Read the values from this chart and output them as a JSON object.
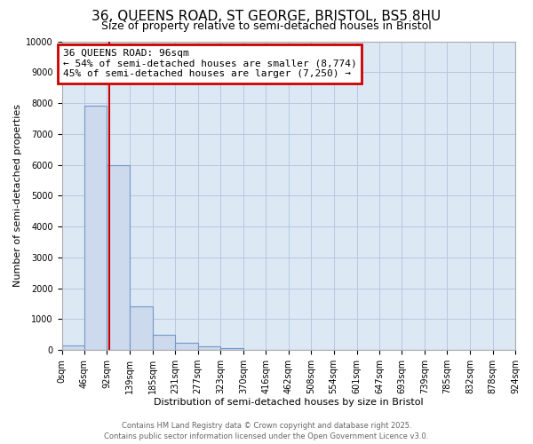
{
  "title": "36, QUEENS ROAD, ST GEORGE, BRISTOL, BS5 8HU",
  "subtitle": "Size of property relative to semi-detached houses in Bristol",
  "xlabel": "Distribution of semi-detached houses by size in Bristol",
  "ylabel": "Number of semi-detached properties",
  "bin_edges": [
    0,
    46,
    92,
    139,
    185,
    231,
    277,
    323,
    370,
    416,
    462,
    508,
    554,
    601,
    647,
    693,
    739,
    785,
    832,
    878,
    924
  ],
  "bin_labels": [
    "0sqm",
    "46sqm",
    "92sqm",
    "139sqm",
    "185sqm",
    "231sqm",
    "277sqm",
    "323sqm",
    "370sqm",
    "416sqm",
    "462sqm",
    "508sqm",
    "554sqm",
    "601sqm",
    "647sqm",
    "693sqm",
    "739sqm",
    "785sqm",
    "832sqm",
    "878sqm",
    "924sqm"
  ],
  "bar_heights": [
    150,
    7900,
    6000,
    1400,
    480,
    220,
    120,
    50,
    10,
    5,
    3,
    2,
    1,
    1,
    0,
    0,
    0,
    0,
    0,
    0
  ],
  "bar_color": "#cdd9ec",
  "bar_edge_color": "#7098c8",
  "axes_bg_color": "#dde8f5",
  "property_size": 96,
  "red_line_color": "#cc0000",
  "annotation_title": "36 QUEENS ROAD: 96sqm",
  "annotation_line1": "← 54% of semi-detached houses are smaller (8,774)",
  "annotation_line2": "45% of semi-detached houses are larger (7,250) →",
  "annotation_box_color": "#cc0000",
  "ylim": [
    0,
    10000
  ],
  "yticks": [
    0,
    1000,
    2000,
    3000,
    4000,
    5000,
    6000,
    7000,
    8000,
    9000,
    10000
  ],
  "footer_line1": "Contains HM Land Registry data © Crown copyright and database right 2025.",
  "footer_line2": "Contains public sector information licensed under the Open Government Licence v3.0.",
  "background_color": "#ffffff",
  "grid_color": "#b8c8e0",
  "title_fontsize": 11,
  "subtitle_fontsize": 9,
  "axis_label_fontsize": 8,
  "tick_fontsize": 7,
  "annotation_fontsize": 8,
  "footer_fontsize": 6
}
